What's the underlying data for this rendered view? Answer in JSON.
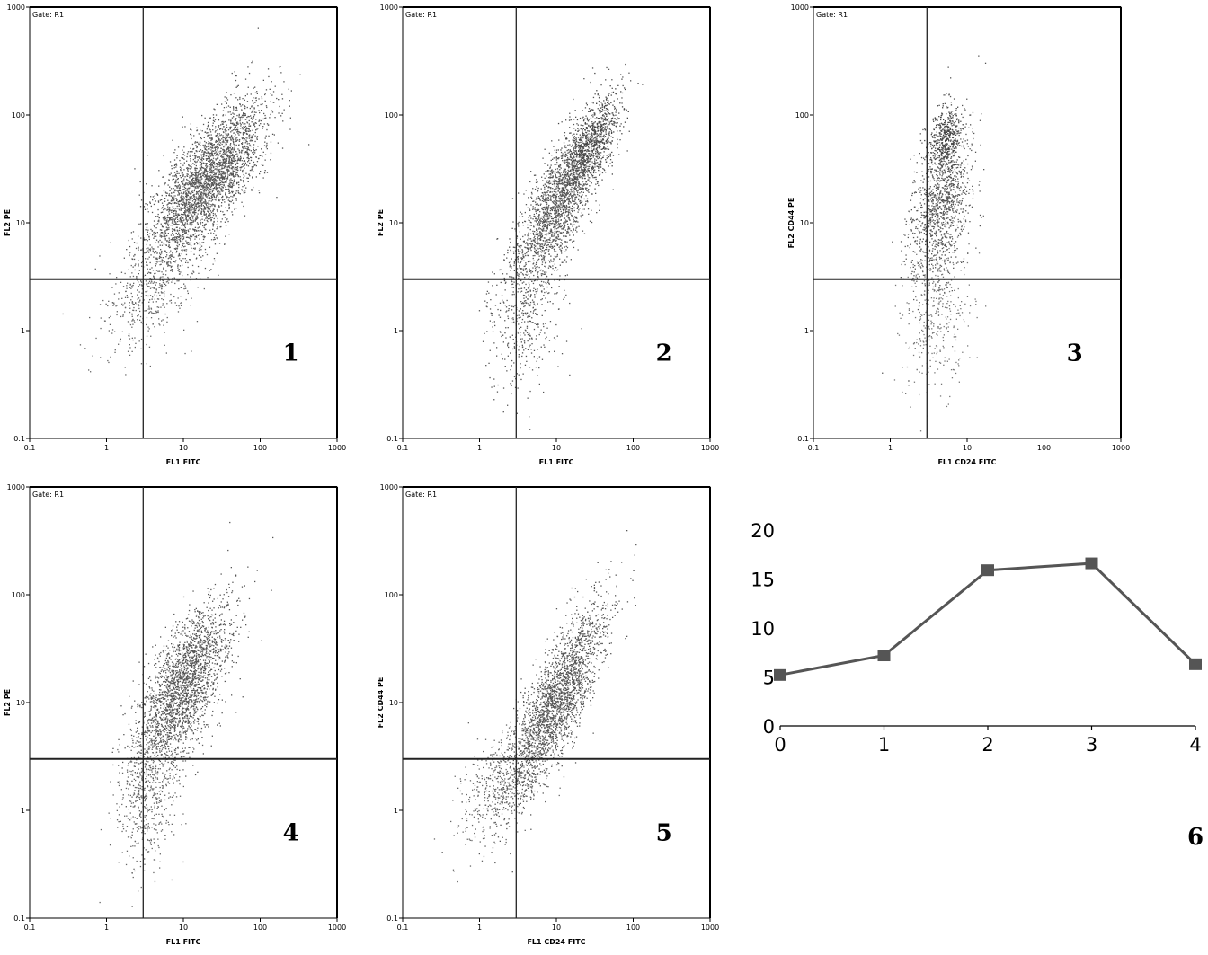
{
  "chart_data": [
    {
      "type": "scatter",
      "panel_label": "1",
      "gate_label": "Gate: R1",
      "xlabel": "FL1 FITC",
      "ylabel": "FL2 PE",
      "x_scale": "log",
      "y_scale": "log",
      "xlim": [
        0.1,
        1000
      ],
      "ylim": [
        0.1,
        1000
      ],
      "x_ticks": [
        "0.1",
        "1",
        "10",
        "100",
        "1000"
      ],
      "y_ticks": [
        "0.1",
        "1",
        "10",
        "100",
        "1000"
      ],
      "quadrant_x": 3,
      "quadrant_y": 3,
      "clusters": [
        {
          "cx": 18,
          "cy": 22,
          "sx": 0.38,
          "sy": 0.38,
          "rho": 0.72,
          "count": 2600,
          "color": "#555555"
        },
        {
          "cx": 4,
          "cy": 2.5,
          "sx": 0.35,
          "sy": 0.3,
          "rho": 0.5,
          "count": 500,
          "color": "#666666"
        },
        {
          "cx": 40,
          "cy": 45,
          "sx": 0.25,
          "sy": 0.25,
          "rho": 0.5,
          "count": 500,
          "color": "#555555"
        }
      ]
    },
    {
      "type": "scatter",
      "panel_label": "2",
      "gate_label": "Gate: R1",
      "xlabel": "FL1 FITC",
      "ylabel": "FL2 PE",
      "x_scale": "log",
      "y_scale": "log",
      "xlim": [
        0.1,
        1000
      ],
      "ylim": [
        0.1,
        1000
      ],
      "x_ticks": [
        "0.1",
        "1",
        "10",
        "100",
        "1000"
      ],
      "y_ticks": [
        "0.1",
        "1",
        "10",
        "100",
        "1000"
      ],
      "quadrant_x": 3,
      "quadrant_y": 3,
      "clusters": [
        {
          "cx": 12,
          "cy": 18,
          "sx": 0.3,
          "sy": 0.4,
          "rho": 0.8,
          "count": 2200,
          "color": "#555555"
        },
        {
          "cx": 30,
          "cy": 60,
          "sx": 0.18,
          "sy": 0.2,
          "rho": 0.6,
          "count": 600,
          "color": "#444444"
        },
        {
          "cx": 4,
          "cy": 1.8,
          "sx": 0.25,
          "sy": 0.4,
          "rho": 0.3,
          "count": 500,
          "color": "#555555"
        }
      ]
    },
    {
      "type": "scatter",
      "panel_label": "3",
      "gate_label": "Gate: R1",
      "xlabel": "FL1 CD24 FITC",
      "ylabel": "FL2 CD44 PE",
      "x_scale": "log",
      "y_scale": "log",
      "xlim": [
        0.1,
        1000
      ],
      "ylim": [
        0.1,
        1000
      ],
      "x_ticks": [
        "0.1",
        "1",
        "10",
        "100",
        "1000"
      ],
      "y_ticks": [
        "0.1",
        "1",
        "10",
        "100",
        "1000"
      ],
      "quadrant_x": 3,
      "quadrant_y": 3,
      "clusters": [
        {
          "cx": 4.5,
          "cy": 15,
          "sx": 0.2,
          "sy": 0.38,
          "rho": 0.4,
          "count": 1200,
          "color": "#555555"
        },
        {
          "cx": 5,
          "cy": 60,
          "sx": 0.1,
          "sy": 0.15,
          "rho": 0.2,
          "count": 400,
          "color": "#444444"
        },
        {
          "cx": 4,
          "cy": 1.5,
          "sx": 0.22,
          "sy": 0.4,
          "rho": 0.2,
          "count": 400,
          "color": "#777777"
        }
      ]
    },
    {
      "type": "scatter",
      "panel_label": "4",
      "gate_label": "Gate: R1",
      "xlabel": "FL1 FITC",
      "ylabel": "FL2 PE",
      "x_scale": "log",
      "y_scale": "log",
      "xlim": [
        0.1,
        1000
      ],
      "ylim": [
        0.1,
        1000
      ],
      "x_ticks": [
        "0.1",
        "1",
        "10",
        "100",
        "1000"
      ],
      "y_ticks": [
        "0.1",
        "1",
        "10",
        "100",
        "1000"
      ],
      "quadrant_x": 3,
      "quadrant_y": 3,
      "clusters": [
        {
          "cx": 10,
          "cy": 14,
          "sx": 0.3,
          "sy": 0.38,
          "rho": 0.65,
          "count": 2400,
          "color": "#555555"
        },
        {
          "cx": 3.5,
          "cy": 1.5,
          "sx": 0.2,
          "sy": 0.35,
          "rho": 0.3,
          "count": 500,
          "color": "#666666"
        }
      ]
    },
    {
      "type": "scatter",
      "panel_label": "5",
      "gate_label": "Gate: R1",
      "xlabel": "FL1 CD24 FITC",
      "ylabel": "FL2 CD44 PE",
      "x_scale": "log",
      "y_scale": "log",
      "xlim": [
        0.1,
        1000
      ],
      "ylim": [
        0.1,
        1000
      ],
      "x_ticks": [
        "0.1",
        "1",
        "10",
        "100",
        "1000"
      ],
      "y_ticks": [
        "0.1",
        "1",
        "10",
        "100",
        "1000"
      ],
      "quadrant_x": 3,
      "quadrant_y": 3,
      "clusters": [
        {
          "cx": 10,
          "cy": 10,
          "sx": 0.32,
          "sy": 0.45,
          "rho": 0.82,
          "count": 2400,
          "color": "#555555"
        },
        {
          "cx": 2,
          "cy": 2,
          "sx": 0.3,
          "sy": 0.3,
          "rho": 0.6,
          "count": 500,
          "color": "#666666"
        }
      ]
    },
    {
      "type": "line",
      "panel_label": "6",
      "title": "",
      "xlabel": "",
      "ylabel": "",
      "x": [
        0,
        1,
        2,
        3,
        4
      ],
      "y_ticks": [
        0,
        5,
        10,
        15,
        20
      ],
      "xlim": [
        0,
        4
      ],
      "ylim": [
        0,
        20
      ],
      "series": [
        {
          "values": [
            5.2,
            7.2,
            15.9,
            16.6,
            6.3
          ],
          "color": "#555555"
        }
      ]
    }
  ]
}
